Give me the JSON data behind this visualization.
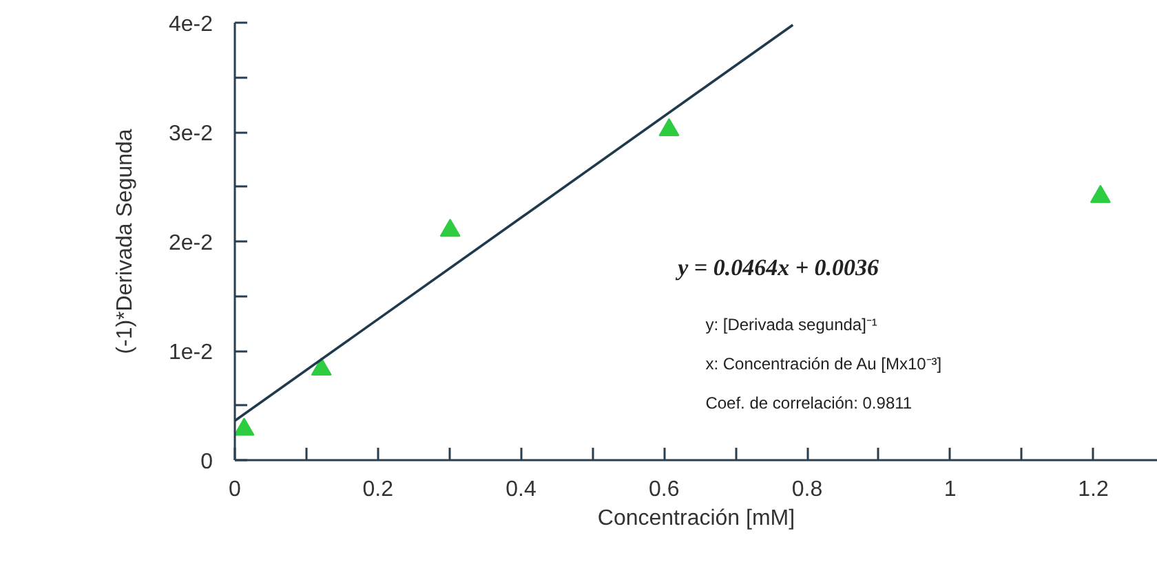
{
  "chart_data": {
    "type": "scatter",
    "xlabel": "Concentración [mM]",
    "ylabel": "(-1)*Derivada Segunda",
    "xlim": [
      0,
      1.29
    ],
    "ylim": [
      0,
      0.04
    ],
    "xticks": [
      0,
      {
        "value": 0.1,
        "label": null
      },
      0.2,
      {
        "value": 0.3,
        "label": null
      },
      0.4,
      {
        "value": 0.5,
        "label": null
      },
      0.6,
      {
        "value": 0.7,
        "label": null
      },
      0.8,
      {
        "value": 0.9,
        "label": null
      },
      1,
      {
        "value": 1.1,
        "label": null
      },
      1.2
    ],
    "yticks": [
      0,
      {
        "value": 0.005,
        "label": null
      },
      {
        "value": 0.01,
        "label": "1e-2"
      },
      {
        "value": 0.015,
        "label": null
      },
      {
        "value": 0.02,
        "label": "2e-2"
      },
      {
        "value": 0.025,
        "label": null
      },
      {
        "value": 0.03,
        "label": "3e-2"
      },
      {
        "value": 0.035,
        "label": null
      },
      {
        "value": 0.04,
        "label": "4e-2"
      }
    ],
    "grid": false,
    "annotations": [
      "y = 0.0464x + 0.0036",
      "y: [Derivada segunda]⁻¹",
      "x: Concentración de Au [Mx10⁻³]",
      "Coef. de correlación: 0.9811"
    ],
    "series": [
      {
        "marker": "triangle",
        "color": "#2ecc40",
        "x": [
          0.013,
          0.121,
          0.301,
          0.607,
          1.21
        ],
        "values": [
          0.0028,
          0.0083,
          0.021,
          0.0302,
          0.0241
        ]
      },
      {
        "type": "line",
        "marker": "none",
        "color": "#1f3a4d",
        "x": [
          0,
          0.78
        ],
        "values": [
          0.0036,
          0.0398
        ]
      }
    ]
  }
}
